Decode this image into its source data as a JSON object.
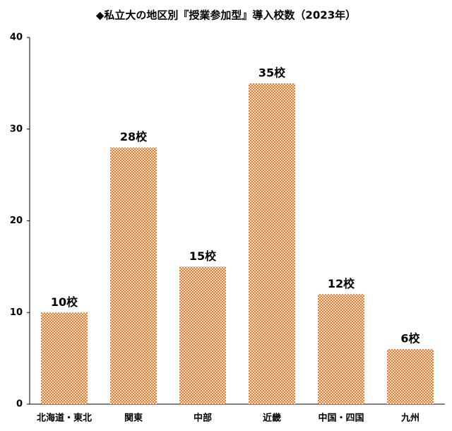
{
  "chart_data": {
    "type": "bar",
    "title": "◆私立大の地区別『授業参加型』導入校数（2023年）",
    "categories": [
      "北海道・東北",
      "関東",
      "中部",
      "近畿",
      "中国・四国",
      "九州"
    ],
    "values": [
      10,
      28,
      15,
      35,
      12,
      6
    ],
    "value_labels": [
      "10校",
      "28校",
      "15校",
      "35校",
      "12校",
      "6校"
    ],
    "color": "#e8782a",
    "ylim": [
      0,
      40
    ],
    "yticks": [
      0,
      10,
      20,
      30,
      40
    ],
    "grid": false
  }
}
